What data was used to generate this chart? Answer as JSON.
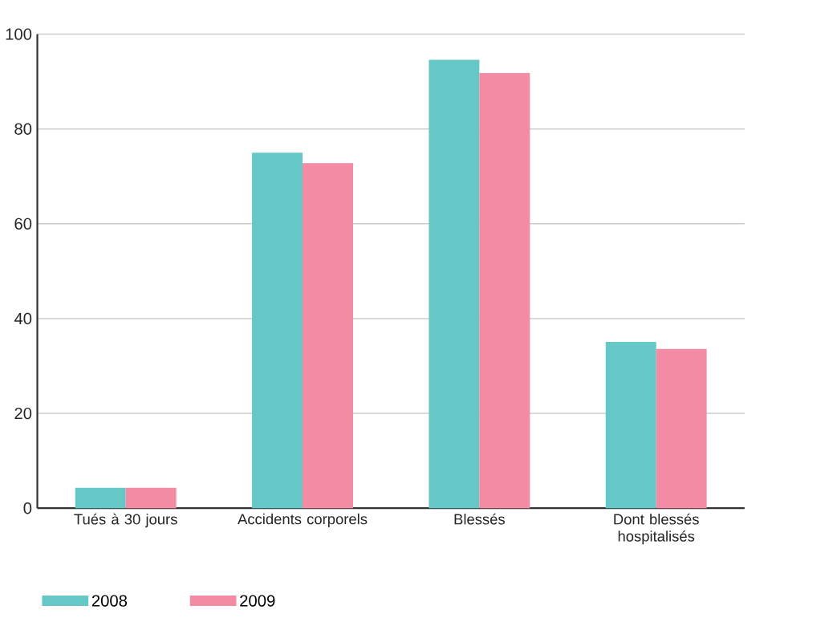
{
  "chart_data": {
    "type": "bar",
    "categories": [
      "Tués à 30 jours",
      "Accidents corporels",
      "Blessés",
      "Dont blessés hospitalisés"
    ],
    "series": [
      {
        "name": "2008",
        "color": "#66c7c7",
        "values": [
          4.3,
          75,
          94.6,
          35.1
        ]
      },
      {
        "name": "2009",
        "color": "#f28ba3",
        "values": [
          4.3,
          72.8,
          91.8,
          33.6
        ]
      }
    ],
    "ylim": [
      0,
      100
    ],
    "yticks": [
      0,
      20,
      40,
      60,
      80,
      100
    ],
    "grid": "y",
    "legend": "bottom left"
  }
}
